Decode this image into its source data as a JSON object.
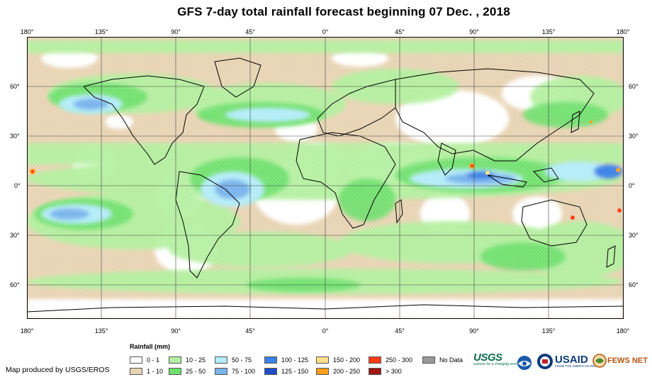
{
  "title": "GFS 7-day total rainfall forecast beginning 07 Dec. , 2018",
  "longitude_labels": [
    "180°",
    "135°",
    "90°",
    "45°",
    "0°",
    "45°",
    "90°",
    "135°",
    "180°"
  ],
  "latitude_labels": [
    "60°",
    "30°",
    "0°",
    "30°",
    "60°"
  ],
  "legend": {
    "title": "Rainfall (mm)",
    "items": [
      {
        "label": "0 - 1",
        "color": "#ffffff"
      },
      {
        "label": "1 - 10",
        "color": "#e8d4b4"
      },
      {
        "label": "10 - 25",
        "color": "#b4f0a0"
      },
      {
        "label": "25 - 50",
        "color": "#6ee06e"
      },
      {
        "label": "50 - 75",
        "color": "#b4ecf8"
      },
      {
        "label": "75 - 100",
        "color": "#7ab4ec"
      },
      {
        "label": "100 - 125",
        "color": "#3c82e6"
      },
      {
        "label": "125 - 150",
        "color": "#1e4fc8"
      },
      {
        "label": "150 - 200",
        "color": "#ffe08a"
      },
      {
        "label": "200 - 250",
        "color": "#ff9f1a"
      },
      {
        "label": "250 - 300",
        "color": "#ff3c14"
      },
      {
        "label": "> 300",
        "color": "#a01414"
      },
      {
        "label": "No Data",
        "color": "#9a9a9a"
      }
    ]
  },
  "credit": "Map produced by USGS/EROS",
  "logos": {
    "usgs": "USGS",
    "usgs_tagline": "science for a changing world",
    "usaid": "USAID",
    "usaid_tagline": "FROM THE AMERICAN PEOPLE",
    "fews": "FEWS NET"
  },
  "colors": {
    "land_outline": "#000000",
    "grid": "#444444",
    "usgs_green": "#0b6e4f",
    "usaid_blue": "#0a3a7a",
    "fews_orange": "#b5530e"
  }
}
